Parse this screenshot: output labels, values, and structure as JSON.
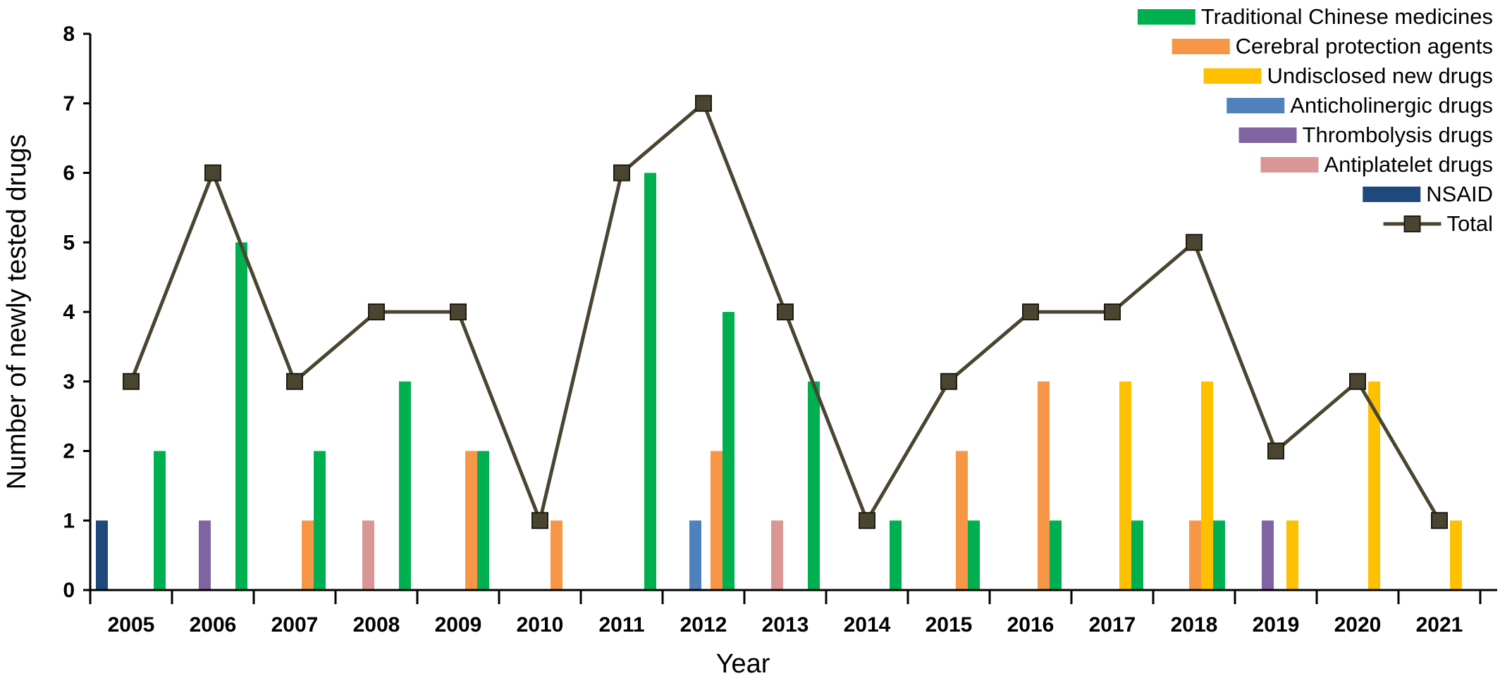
{
  "chart_data": {
    "type": "bar",
    "title": "",
    "xlabel": "Year",
    "ylabel": "Number of newly tested drugs",
    "ylim": [
      0,
      8
    ],
    "yticks": [
      0,
      1,
      2,
      3,
      4,
      5,
      6,
      7,
      8
    ],
    "grid": false,
    "legend_placement": "top-right",
    "categories": [
      "2005",
      "2006",
      "2007",
      "2008",
      "2009",
      "2010",
      "2011",
      "2012",
      "2013",
      "2014",
      "2015",
      "2016",
      "2017",
      "2018",
      "2019",
      "2020",
      "2021"
    ],
    "series": [
      {
        "name": "NSAID",
        "kind": "bar",
        "color": "#1f497d",
        "values": [
          1,
          0,
          0,
          0,
          0,
          0,
          0,
          0,
          0,
          0,
          0,
          0,
          0,
          0,
          0,
          0,
          0
        ]
      },
      {
        "name": "Thrombolysis drugs",
        "kind": "bar",
        "color": "#8064a2",
        "values": [
          0,
          1,
          0,
          0,
          0,
          0,
          0,
          0,
          0,
          0,
          0,
          0,
          0,
          0,
          1,
          0,
          0
        ]
      },
      {
        "name": "Antiplatelet drugs",
        "kind": "bar",
        "color": "#da9694",
        "values": [
          0,
          0,
          0,
          1,
          0,
          0,
          0,
          0,
          1,
          0,
          0,
          0,
          0,
          0,
          0,
          0,
          0
        ]
      },
      {
        "name": "Anticholinergic drugs",
        "kind": "bar",
        "color": "#4f81bd",
        "values": [
          0,
          0,
          0,
          0,
          0,
          0,
          0,
          1,
          0,
          0,
          0,
          0,
          0,
          0,
          0,
          0,
          0
        ]
      },
      {
        "name": "Cerebral protection agents",
        "kind": "bar",
        "color": "#f79646",
        "values": [
          0,
          0,
          1,
          0,
          2,
          1,
          0,
          2,
          0,
          0,
          2,
          3,
          0,
          1,
          0,
          0,
          0
        ]
      },
      {
        "name": "Undisclosed new drugs",
        "kind": "bar",
        "color": "#ffc000",
        "values": [
          0,
          0,
          0,
          0,
          0,
          0,
          0,
          0,
          0,
          0,
          0,
          0,
          3,
          3,
          1,
          3,
          1
        ]
      },
      {
        "name": "Traditional Chinese medicines",
        "kind": "bar",
        "color": "#00b050",
        "values": [
          2,
          5,
          2,
          3,
          2,
          0,
          6,
          4,
          3,
          1,
          1,
          1,
          1,
          1,
          0,
          0,
          0
        ]
      },
      {
        "name": "Total",
        "kind": "line",
        "color": "#4a4530",
        "values": [
          3,
          6,
          3,
          4,
          4,
          1,
          6,
          7,
          4,
          1,
          3,
          4,
          4,
          5,
          2,
          3,
          1
        ]
      }
    ],
    "legend_order": [
      "Traditional Chinese medicines",
      "Cerebral protection agents",
      "Undisclosed new drugs",
      "Anticholinergic drugs",
      "Thrombolysis drugs",
      "Antiplatelet drugs",
      "NSAID",
      "Total"
    ]
  }
}
